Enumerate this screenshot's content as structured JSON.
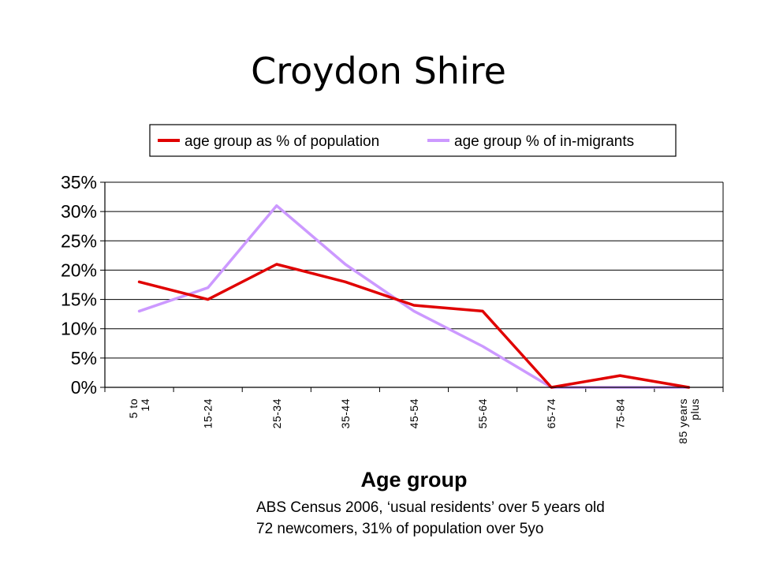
{
  "title": "Croydon Shire",
  "colors": {
    "population": "#e00000",
    "in_migrants": "#cc99ff",
    "grid": "#000000"
  },
  "chart_data": {
    "type": "line",
    "title": "",
    "xlabel": "Age group",
    "ylabel": "",
    "ylim": [
      0,
      0.35
    ],
    "y_ticks": [
      0,
      0.05,
      0.1,
      0.15,
      0.2,
      0.25,
      0.3,
      0.35
    ],
    "y_tick_labels": [
      "0%",
      "5%",
      "10%",
      "15%",
      "20%",
      "25%",
      "30%",
      "35%"
    ],
    "grid": true,
    "legend_position": "top",
    "categories": [
      "5 to 14",
      "15-24",
      "25-34",
      "35-44",
      "45-54",
      "55-64",
      "65-74",
      "75-84",
      "85 years plus"
    ],
    "series": [
      {
        "name": "age group as % of population",
        "color": "#e00000",
        "values": [
          0.18,
          0.15,
          0.21,
          0.18,
          0.14,
          0.13,
          0.0,
          0.02,
          0.0
        ]
      },
      {
        "name": "age group % of in-migrants",
        "color": "#cc99ff",
        "values": [
          0.13,
          0.17,
          0.31,
          0.21,
          0.13,
          0.07,
          0.0,
          0.0,
          0.0
        ]
      }
    ]
  },
  "footnote": {
    "line1": "ABS Census 2006, ‘usual residents’ over 5 years old",
    "line2": "72 newcomers, 31% of population over 5yo"
  }
}
